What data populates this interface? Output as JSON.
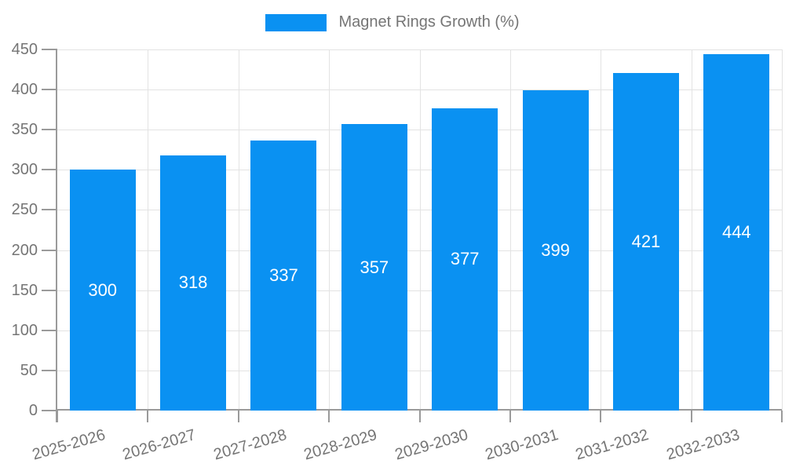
{
  "chart_data": {
    "type": "bar",
    "title": "",
    "categories": [
      "2025-2026",
      "2026-2027",
      "2027-2028",
      "2028-2029",
      "2029-2030",
      "2030-2031",
      "2031-2032",
      "2032-2033"
    ],
    "series": [
      {
        "name": "Magnet Rings Growth (%)",
        "color": "#0a91f2",
        "values": [
          300,
          318,
          337,
          357,
          377,
          399,
          421,
          444
        ]
      }
    ],
    "bar_value_labels": [
      "300",
      "318",
      "337",
      "357",
      "377",
      "399",
      "421",
      "444"
    ],
    "xlabel": "",
    "ylabel": "",
    "ylim": [
      0,
      450
    ],
    "yticks": [
      0,
      50,
      100,
      150,
      200,
      250,
      300,
      350,
      400,
      450
    ],
    "grid": "on",
    "legend_position": "top",
    "x_tick_label_rotation_deg": -16
  },
  "colors": {
    "bar": "#0a91f2",
    "grid_line": "#e3e3e3",
    "axis_line": "#9a9a9a",
    "tick_text": "#757575",
    "bar_value_text": "#ffffff",
    "background": "#ffffff"
  }
}
